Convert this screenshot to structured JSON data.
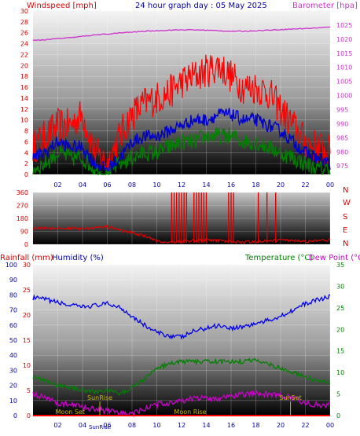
{
  "header": {
    "left_title": "Windspeed [mph]",
    "center_title": "24 hour graph day : 05 May 2025",
    "right_title": "Barometer [hpa]"
  },
  "colors": {
    "gust": "#ff0000",
    "average": "#0000cc",
    "min_wind": "#008000",
    "barometer": "#cc33cc",
    "direction": "#dd0000",
    "humidity": "#0000ee",
    "temperature": "#008000",
    "dewpoint": "#cc00cc",
    "rain": "#ff0000",
    "annotation": "#c8b400"
  },
  "chart_data": [
    {
      "type": "line",
      "id": "wind-baro",
      "x_ticks": [
        "02",
        "04",
        "06",
        "08",
        "10",
        "12",
        "14",
        "16",
        "18",
        "20",
        "22",
        "00"
      ],
      "left_axis": {
        "label": "Windspeed [mph]",
        "ylim": [
          0,
          30
        ],
        "ticks": [
          "0",
          "2",
          "4",
          "6",
          "8",
          "10",
          "12",
          "14",
          "16",
          "18",
          "20",
          "22",
          "24",
          "26",
          "28",
          "30"
        ]
      },
      "right_axis": {
        "label": "Barometer [hpa]",
        "ylim": [
          972,
          1030
        ],
        "ticks": [
          "975",
          "980",
          "985",
          "990",
          "995",
          "1000",
          "1005",
          "1010",
          "1015",
          "1020",
          "1025"
        ]
      },
      "hours": [
        0,
        1,
        2,
        3,
        4,
        5,
        6,
        7,
        8,
        9,
        10,
        11,
        12,
        13,
        14,
        15,
        16,
        17,
        18,
        19,
        20,
        21,
        22,
        23,
        24
      ],
      "series": [
        {
          "name": "Gust",
          "values": [
            5,
            7,
            9,
            9,
            11,
            4,
            2,
            7,
            11,
            13,
            14,
            15,
            17,
            18,
            19,
            20,
            18,
            16,
            16,
            15,
            12,
            9,
            6,
            5,
            4
          ]
        },
        {
          "name": "Average",
          "values": [
            3,
            4,
            6,
            5,
            5,
            2,
            1,
            3,
            6,
            7,
            7,
            8,
            9,
            10,
            10,
            11,
            11,
            10,
            10,
            9,
            8,
            6,
            4,
            3,
            2
          ]
        },
        {
          "name": "Min",
          "values": [
            1,
            2,
            4,
            3,
            3,
            1,
            0,
            2,
            3,
            4,
            4,
            5,
            6,
            6,
            7,
            7,
            7,
            6,
            6,
            5,
            4,
            3,
            2,
            1,
            1
          ]
        },
        {
          "name": "Barometer",
          "axis": "right",
          "values": [
            1019.5,
            1019.8,
            1020.2,
            1020.5,
            1021,
            1021.5,
            1021.8,
            1022.2,
            1022.5,
            1022.8,
            1023,
            1023.2,
            1023.3,
            1023.3,
            1023.2,
            1023,
            1022.8,
            1022.8,
            1023,
            1023.2,
            1023.4,
            1023.6,
            1023.8,
            1024,
            1024.3
          ]
        }
      ]
    },
    {
      "type": "line",
      "id": "wind-direction",
      "x_ticks": [],
      "left_axis": {
        "ylim": [
          0,
          360
        ],
        "ticks": [
          "0",
          "90",
          "180",
          "270",
          "360"
        ]
      },
      "right_labels": [
        "N",
        "W",
        "S",
        "E",
        "N"
      ],
      "hours": [
        0,
        1,
        2,
        3,
        4,
        5,
        6,
        7,
        8,
        9,
        10,
        11,
        12,
        13,
        14,
        15,
        16,
        17,
        18,
        19,
        20,
        21,
        22,
        23,
        24
      ],
      "series": [
        {
          "name": "Direction",
          "values": [
            110,
            115,
            112,
            110,
            108,
            115,
            120,
            100,
            80,
            60,
            20,
            15,
            20,
            25,
            30,
            25,
            20,
            15,
            20,
            25,
            30,
            25,
            20,
            25,
            30
          ]
        }
      ],
      "spikes": [
        11.2,
        11.4,
        11.6,
        11.8,
        12.0,
        12.2,
        12.4,
        13.0,
        13.2,
        13.4,
        13.6,
        13.8,
        14.0,
        15.8,
        16.0,
        16.2,
        18.2,
        18.9,
        19.6
      ]
    },
    {
      "type": "line",
      "id": "temp-humidity",
      "x_ticks": [
        "02",
        "04",
        "06",
        "08",
        "10",
        "12",
        "14",
        "16",
        "18",
        "20",
        "22",
        "00"
      ],
      "header_labels": {
        "rain": "Rainfall (mm)",
        "humidity": "Humidity (%)",
        "temperature": "Temperature (°C)",
        "dewpoint": "Dew Point (°C"
      },
      "humidity_axis": {
        "ylim": [
          0,
          100
        ],
        "ticks": [
          "0",
          "10",
          "20",
          "30",
          "40",
          "50",
          "60",
          "70",
          "80",
          "90",
          "100"
        ]
      },
      "rain_axis": {
        "ylim": [
          0,
          30
        ],
        "ticks": [
          "0",
          "5",
          "10",
          "15",
          "20",
          "25",
          "30"
        ]
      },
      "temp_axis": {
        "ylim": [
          0,
          35
        ],
        "ticks": [
          "0",
          "5",
          "10",
          "15",
          "20",
          "25",
          "30",
          "35"
        ]
      },
      "hours": [
        0,
        1,
        2,
        3,
        4,
        5,
        6,
        7,
        8,
        9,
        10,
        11,
        12,
        13,
        14,
        15,
        16,
        17,
        18,
        19,
        20,
        21,
        22,
        23,
        24
      ],
      "series": [
        {
          "name": "Humidity",
          "axis": "humidity",
          "values": [
            78,
            77,
            75,
            73,
            72,
            73,
            74,
            72,
            66,
            60,
            55,
            53,
            52,
            56,
            58,
            60,
            58,
            59,
            61,
            63,
            66,
            70,
            74,
            77,
            79
          ]
        },
        {
          "name": "Temperature",
          "axis": "temp",
          "values": [
            9,
            8,
            7,
            6.5,
            6,
            5.5,
            6,
            5,
            6.5,
            8.5,
            11,
            12,
            12.5,
            12.5,
            12.5,
            12.5,
            12.5,
            12.5,
            13,
            12,
            11,
            10,
            9,
            8,
            7.5
          ]
        },
        {
          "name": "Dew Point",
          "axis": "temp",
          "values": [
            5,
            4,
            3,
            2.5,
            2,
            1.5,
            1,
            0.5,
            0.5,
            1.5,
            2.5,
            3,
            3.5,
            4,
            4,
            4,
            4.5,
            5,
            5,
            5,
            4.5,
            4,
            3,
            2.5,
            2.5
          ]
        },
        {
          "name": "Rain",
          "axis": "rain",
          "values": [
            0,
            0,
            0,
            0,
            0,
            0,
            0,
            0,
            0,
            0,
            0,
            0,
            0,
            0,
            0,
            0,
            0,
            0,
            0,
            0,
            0,
            0,
            0,
            0,
            0
          ]
        }
      ],
      "annotations": [
        {
          "label": "SunRise",
          "hour": 5.4,
          "level": "upper"
        },
        {
          "label": "SunSet",
          "hour": 20.8,
          "level": "upper"
        },
        {
          "label": "Moon Set",
          "hour": 3.0,
          "level": "lower"
        },
        {
          "label": "Moon Rise",
          "hour": 12.7,
          "level": "lower"
        },
        {
          "label": "SunRise",
          "hour": 5.4,
          "level": "below"
        }
      ]
    }
  ]
}
